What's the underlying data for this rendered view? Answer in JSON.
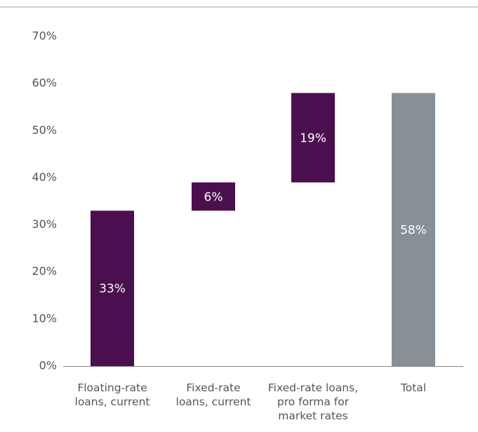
{
  "chart_data": {
    "type": "waterfall",
    "categories": [
      "Floating-rate loans, current",
      "Fixed-rate loans, current",
      "Fixed-rate loans, pro forma for market rates",
      "Total"
    ],
    "values": [
      33,
      6,
      19,
      58
    ],
    "value_labels": [
      "33%",
      "6%",
      "19%",
      "58%"
    ],
    "measures": [
      "relative",
      "relative",
      "relative",
      "total"
    ],
    "colors": [
      "#4b0f50",
      "#4b0f50",
      "#4b0f50",
      "#879096"
    ],
    "ylim": [
      0,
      70
    ],
    "yticks": [
      {
        "value": 0,
        "label": "0%"
      },
      {
        "value": 10,
        "label": "10%"
      },
      {
        "value": 20,
        "label": "20%"
      },
      {
        "value": 30,
        "label": "30%"
      },
      {
        "value": 40,
        "label": "40%"
      },
      {
        "value": 50,
        "label": "50%"
      },
      {
        "value": 60,
        "label": "60%"
      },
      {
        "value": 70,
        "label": "70%"
      }
    ],
    "grid": false
  }
}
